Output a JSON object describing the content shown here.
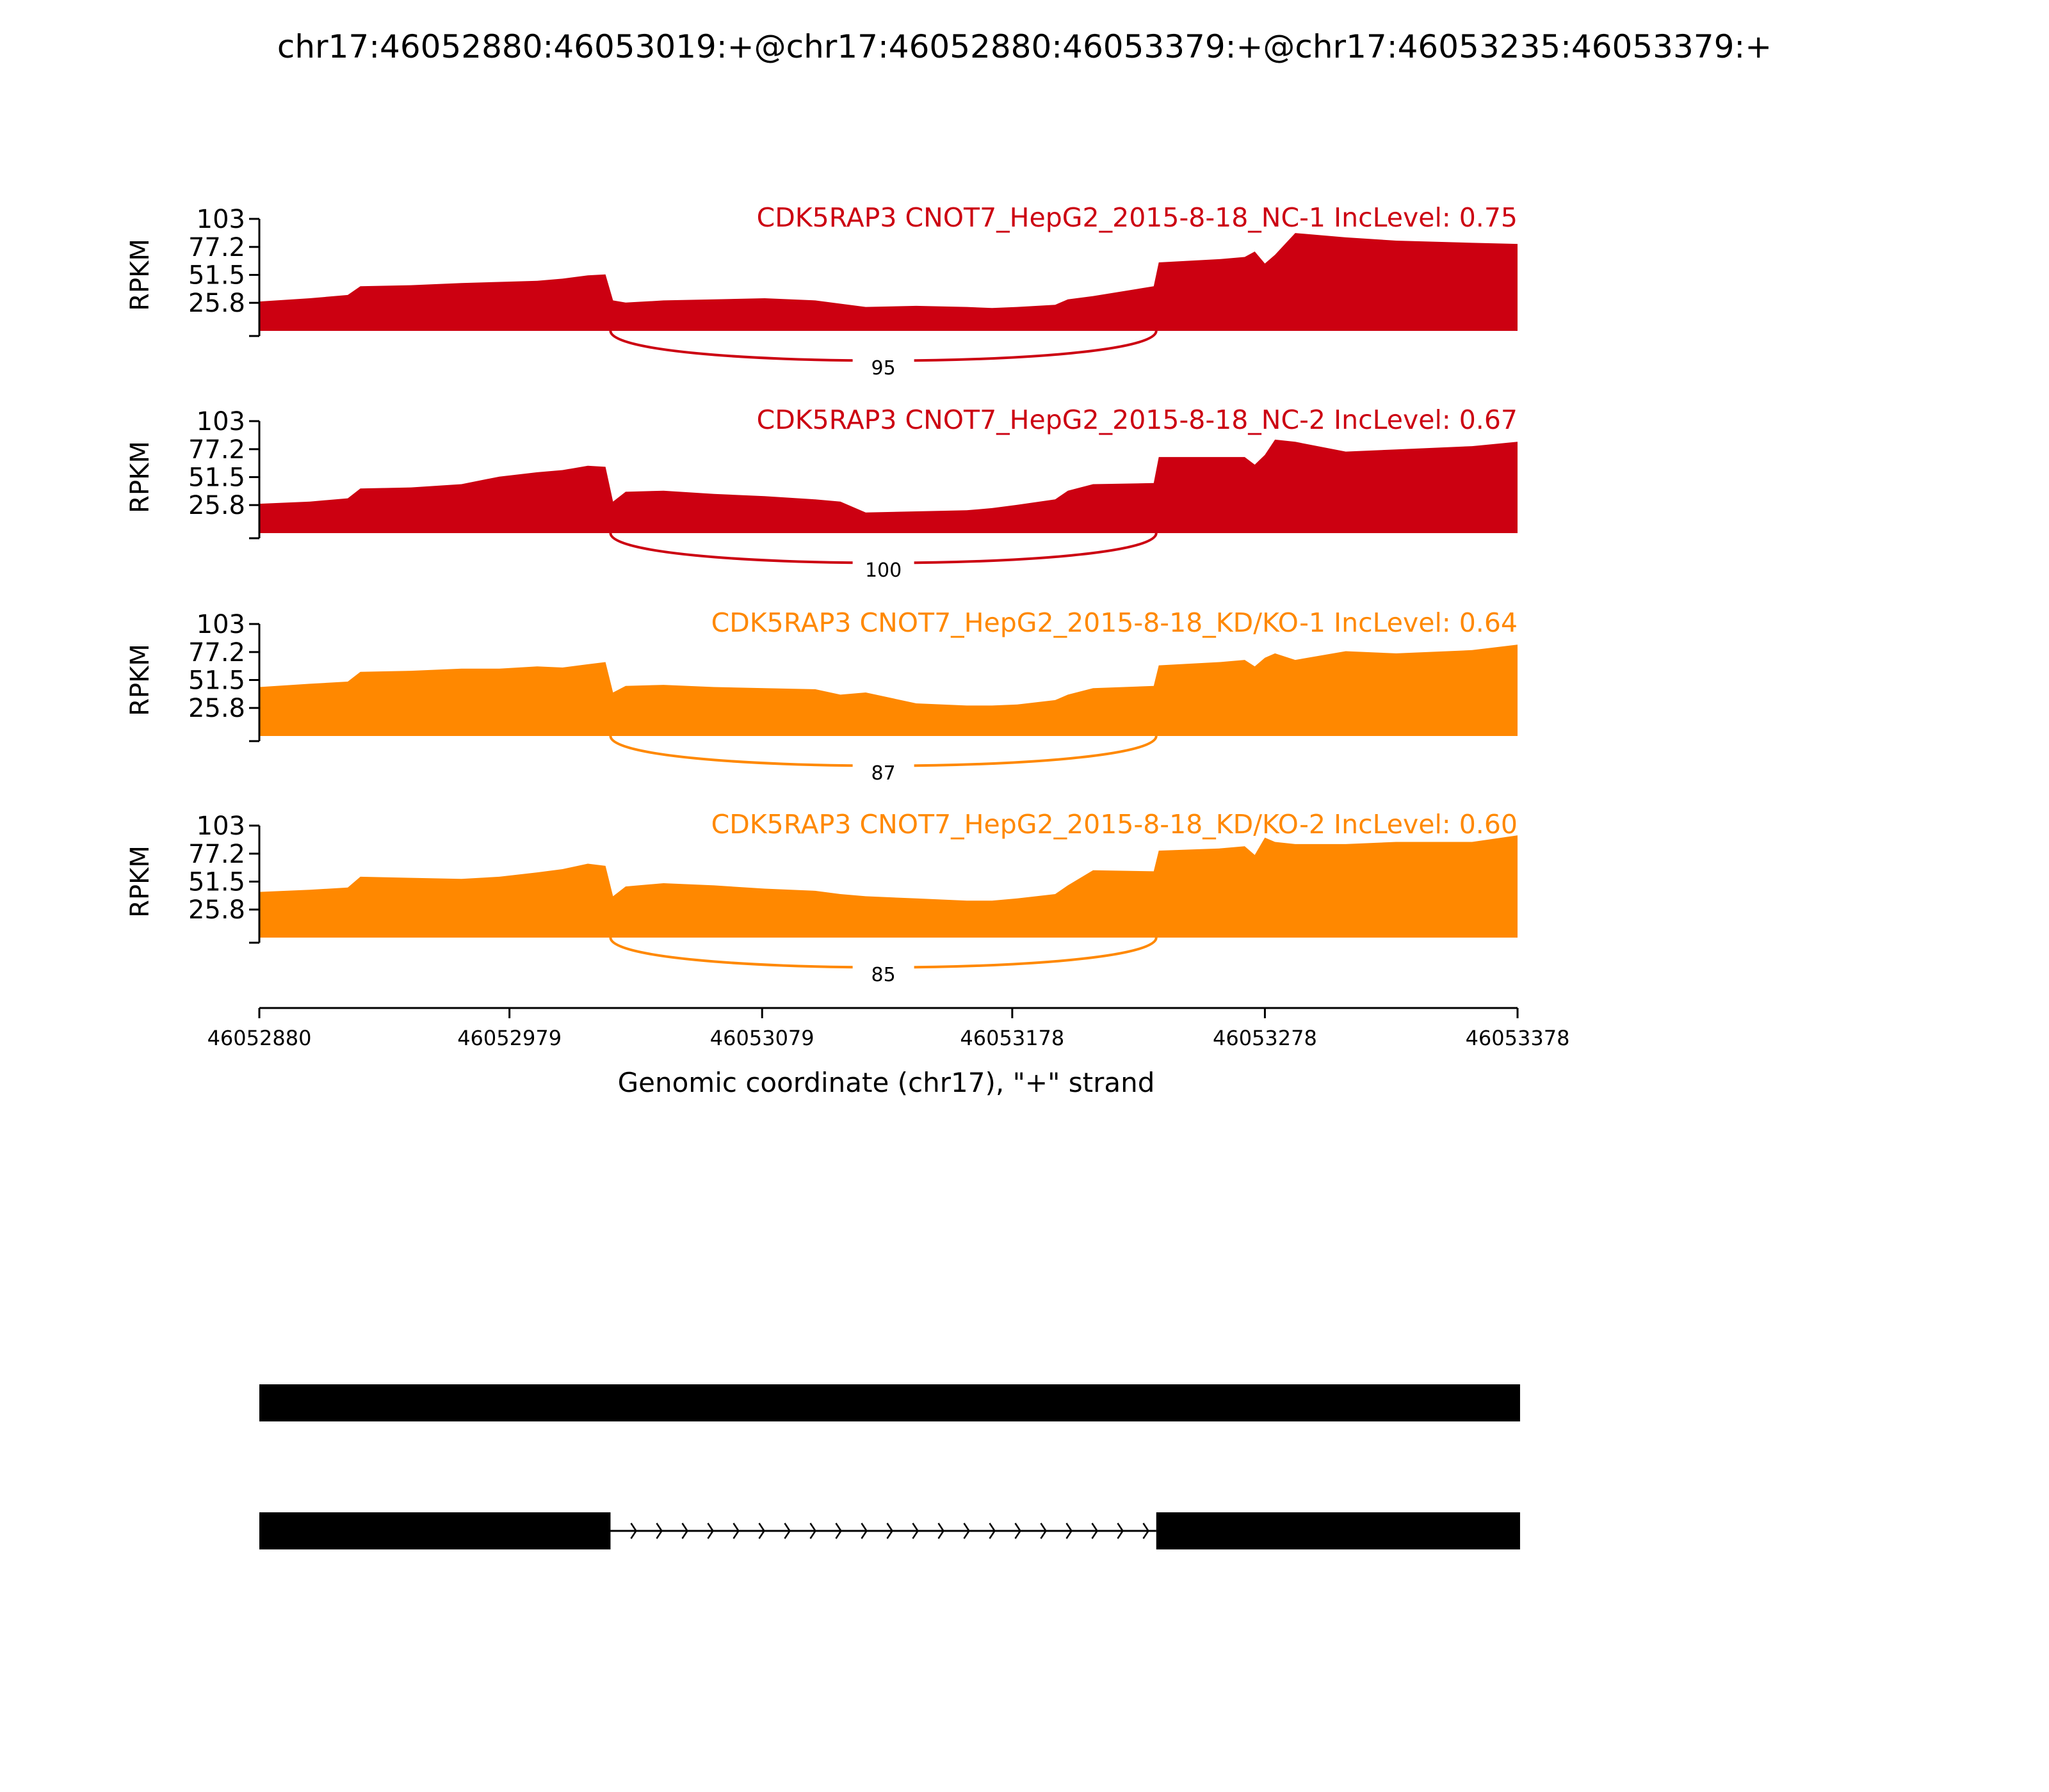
{
  "title": "chr17:46052880:46053019:+@chr17:46052880:46053379:+@chr17:46053235:46053379:+",
  "colors": {
    "nc": "#CC0011",
    "kd": "#FF8800",
    "axis": "#000000",
    "exon": "#000000"
  },
  "chart_data": {
    "type": "area",
    "title": "chr17:46052880:46053019:+@chr17:46052880:46053379:+@chr17:46053235:46053379:+",
    "xlabel": "Genomic coordinate (chr17), \"+\" strand",
    "ylabel": "RPKM",
    "xlim": [
      46052880,
      46053378
    ],
    "ylim": [
      0,
      103
    ],
    "x_ticks": [
      "46052880",
      "46052979",
      "46053079",
      "46053178",
      "46053278",
      "46053378"
    ],
    "y_ticks": [
      "103",
      "77.2",
      "51.5",
      "25.8"
    ],
    "series": [
      {
        "name": "CDK5RAP3 CNOT7_HepG2_2015-8-18_NC-1 IncLevel: 0.75",
        "color": "#CC0011",
        "junction_count": "95",
        "x": [
          46052880,
          46052900,
          46052915,
          46052920,
          46052940,
          46052960,
          46052975,
          46052990,
          46053000,
          46053010,
          46053017,
          46053020,
          46053025,
          46053040,
          46053060,
          46053080,
          46053100,
          46053110,
          46053120,
          46053140,
          46053160,
          46053170,
          46053180,
          46053195,
          46053200,
          46053210,
          46053234,
          46053236,
          46053260,
          46053270,
          46053274,
          46053278,
          46053282,
          46053290,
          46053310,
          46053330,
          46053360,
          46053378
        ],
        "y": [
          27,
          30,
          33,
          41,
          42,
          44,
          45,
          46,
          48,
          51,
          52,
          28,
          26,
          28,
          29,
          30,
          28,
          25,
          22,
          23,
          22,
          21,
          22,
          24,
          29,
          32,
          41,
          63,
          66,
          68,
          73,
          62,
          70,
          90,
          86,
          83,
          81,
          80
        ]
      },
      {
        "name": "CDK5RAP3 CNOT7_HepG2_2015-8-18_NC-2 IncLevel: 0.67",
        "color": "#CC0011",
        "junction_count": "100",
        "x": [
          46052880,
          46052900,
          46052915,
          46052920,
          46052940,
          46052960,
          46052975,
          46052990,
          46053000,
          46053010,
          46053017,
          46053020,
          46053025,
          46053040,
          46053060,
          46053080,
          46053100,
          46053110,
          46053120,
          46053140,
          46053160,
          46053170,
          46053180,
          46053195,
          46053200,
          46053210,
          46053234,
          46053236,
          46053260,
          46053270,
          46053274,
          46053278,
          46053282,
          46053290,
          46053310,
          46053330,
          46053360,
          46053378
        ],
        "y": [
          27,
          29,
          32,
          41,
          42,
          45,
          52,
          56,
          58,
          62,
          61,
          29,
          38,
          39,
          36,
          34,
          31,
          29,
          19,
          20,
          21,
          23,
          26,
          31,
          39,
          45,
          46,
          70,
          70,
          70,
          63,
          72,
          86,
          84,
          75,
          77,
          80,
          84
        ]
      },
      {
        "name": "CDK5RAP3 CNOT7_HepG2_2015-8-18_KD/KO-1 IncLevel: 0.64",
        "color": "#FF8800",
        "junction_count": "87",
        "x": [
          46052880,
          46052900,
          46052915,
          46052920,
          46052940,
          46052960,
          46052975,
          46052990,
          46053000,
          46053010,
          46053017,
          46053020,
          46053025,
          46053040,
          46053060,
          46053080,
          46053100,
          46053110,
          46053120,
          46053140,
          46053160,
          46053170,
          46053180,
          46053195,
          46053200,
          46053210,
          46053234,
          46053236,
          46053260,
          46053270,
          46053274,
          46053278,
          46053282,
          46053290,
          46053310,
          46053330,
          46053360,
          46053378
        ],
        "y": [
          45,
          48,
          50,
          59,
          60,
          62,
          62,
          64,
          63,
          66,
          68,
          40,
          46,
          47,
          45,
          44,
          43,
          38,
          40,
          30,
          28,
          28,
          29,
          33,
          38,
          44,
          46,
          65,
          68,
          70,
          64,
          72,
          76,
          70,
          78,
          76,
          79,
          84
        ]
      },
      {
        "name": "CDK5RAP3 CNOT7_HepG2_2015-8-18_KD/KO-2 IncLevel: 0.60",
        "color": "#FF8800",
        "junction_count": "85",
        "x": [
          46052880,
          46052900,
          46052915,
          46052920,
          46052940,
          46052960,
          46052975,
          46052990,
          46053000,
          46053010,
          46053017,
          46053020,
          46053025,
          46053040,
          46053060,
          46053080,
          46053100,
          46053110,
          46053120,
          46053140,
          46053160,
          46053170,
          46053180,
          46053195,
          46053200,
          46053210,
          46053234,
          46053236,
          46053260,
          46053270,
          46053274,
          46053278,
          46053282,
          46053290,
          46053310,
          46053330,
          46053360,
          46053378
        ],
        "y": [
          42,
          44,
          46,
          56,
          55,
          54,
          56,
          60,
          63,
          68,
          66,
          38,
          47,
          50,
          48,
          45,
          43,
          40,
          38,
          36,
          34,
          34,
          36,
          40,
          48,
          62,
          61,
          80,
          82,
          84,
          76,
          92,
          88,
          86,
          86,
          88,
          88,
          94
        ]
      }
    ],
    "junction": {
      "donor": 46053019,
      "acceptor": 46053235
    },
    "isoforms": [
      {
        "exons": [
          [
            46052880,
            46053379
          ]
        ]
      },
      {
        "exons": [
          [
            46052880,
            46053019
          ],
          [
            46053235,
            46053379
          ]
        ]
      }
    ]
  }
}
